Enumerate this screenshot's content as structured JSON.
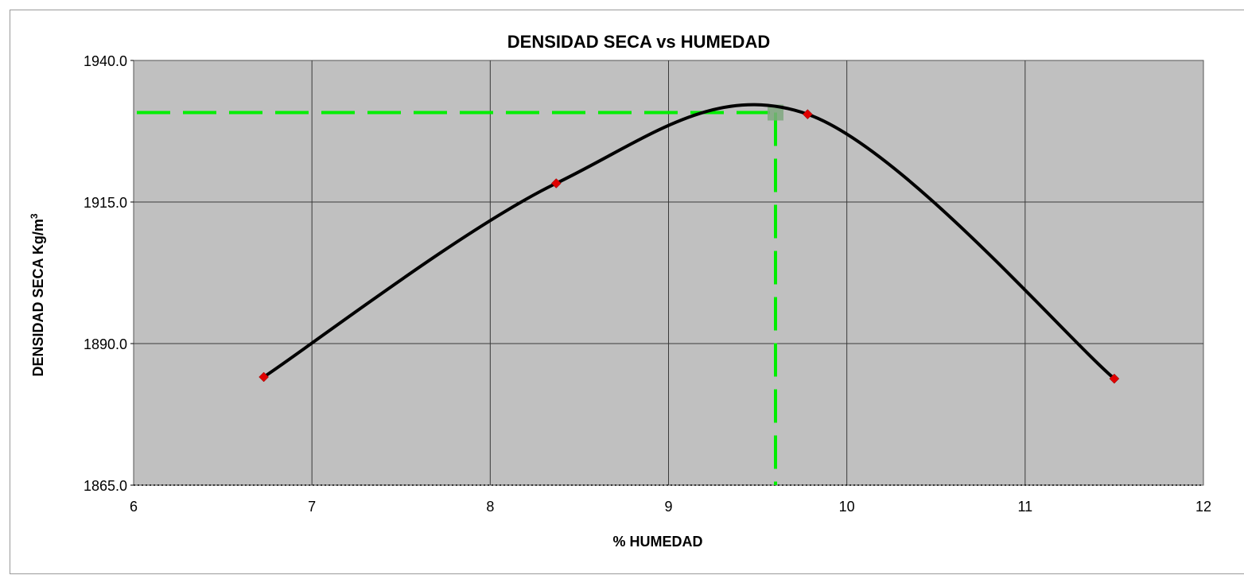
{
  "chart_data": {
    "type": "scatter",
    "title": "DENSIDAD SECA vs HUMEDAD",
    "xlabel": "% HUMEDAD",
    "ylabel_main": "DENSIDAD SECA  Kg/m",
    "ylabel_sup": "3",
    "xlim": [
      6,
      12
    ],
    "ylim": [
      1865.0,
      1940.0
    ],
    "x_ticks": [
      6,
      7,
      8,
      9,
      10,
      11,
      12
    ],
    "y_ticks": [
      1865.0,
      1890.0,
      1915.0,
      1940.0
    ],
    "y_tick_labels": [
      "1865.0",
      "1890.0",
      "1915.0",
      "1940.0"
    ],
    "x_tick_labels": [
      "6",
      "7",
      "8",
      "9",
      "10",
      "11",
      "12"
    ],
    "grid": true,
    "plot_background": "#c0c0c0",
    "series": [
      {
        "points": [
          {
            "x": 6.73,
            "y": 1884.1
          },
          {
            "x": 8.37,
            "y": 1918.3
          },
          {
            "x": 9.78,
            "y": 1930.5
          },
          {
            "x": 11.5,
            "y": 1883.8
          }
        ],
        "marker_color": "#e00000",
        "line_color": "#000000"
      }
    ],
    "optimum": {
      "x": 9.6,
      "y": 1930.8
    },
    "reference_line_color": "#00ee00"
  }
}
